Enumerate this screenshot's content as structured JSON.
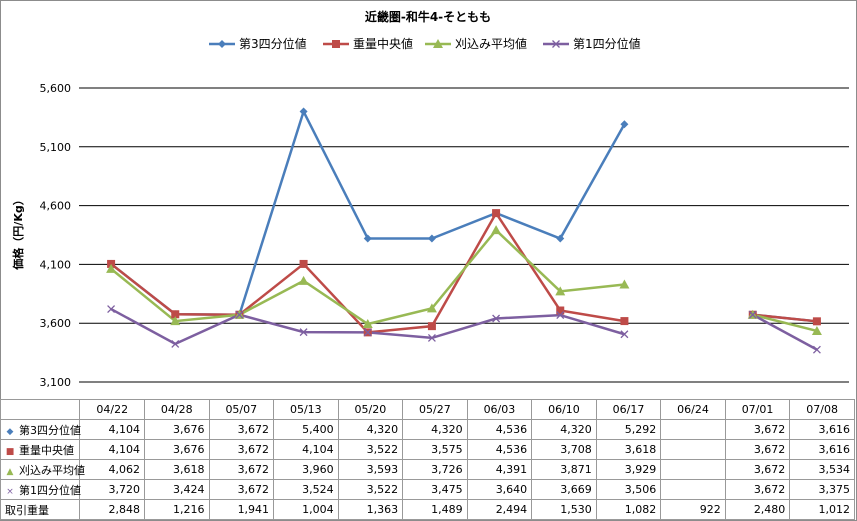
{
  "chart_data": {
    "type": "line",
    "title": "近畿圏-和牛4-そともも",
    "ylabel": "価格（円/Kg）",
    "categories": [
      "04/22",
      "04/28",
      "05/07",
      "05/13",
      "05/20",
      "05/27",
      "06/03",
      "06/10",
      "06/17",
      "06/24",
      "07/01",
      "07/08"
    ],
    "ylim": [
      3100,
      5600
    ],
    "yticks": [
      "3,100",
      "3,600",
      "4,100",
      "4,600",
      "5,100",
      "5,600"
    ],
    "grid": true,
    "legend_position": "top",
    "series": [
      {
        "name": "第3四分位値",
        "color": "#4a7ebb",
        "marker": "diamond",
        "values": [
          4104,
          3676,
          3672,
          5400,
          4320,
          4320,
          4536,
          4320,
          5292,
          null,
          3672,
          3616
        ],
        "labels": [
          "4,104",
          "3,676",
          "3,672",
          "5,400",
          "4,320",
          "4,320",
          "4,536",
          "4,320",
          "5,292",
          "",
          "3,672",
          "3,616"
        ]
      },
      {
        "name": "重量中央値",
        "color": "#be4b48",
        "marker": "square",
        "values": [
          4104,
          3676,
          3672,
          4104,
          3522,
          3575,
          4536,
          3708,
          3618,
          null,
          3672,
          3616
        ],
        "labels": [
          "4,104",
          "3,676",
          "3,672",
          "4,104",
          "3,522",
          "3,575",
          "4,536",
          "3,708",
          "3,618",
          "",
          "3,672",
          "3,616"
        ]
      },
      {
        "name": "刈込み平均値",
        "color": "#98b954",
        "marker": "triangle",
        "values": [
          4062,
          3618,
          3672,
          3960,
          3593,
          3726,
          4391,
          3871,
          3929,
          null,
          3672,
          3534
        ],
        "labels": [
          "4,062",
          "3,618",
          "3,672",
          "3,960",
          "3,593",
          "3,726",
          "4,391",
          "3,871",
          "3,929",
          "",
          "3,672",
          "3,534"
        ]
      },
      {
        "name": "第1四分位値",
        "color": "#7d5fa0",
        "marker": "x",
        "values": [
          3720,
          3424,
          3672,
          3524,
          3522,
          3475,
          3640,
          3669,
          3506,
          null,
          3672,
          3375
        ],
        "labels": [
          "3,720",
          "3,424",
          "3,672",
          "3,524",
          "3,522",
          "3,475",
          "3,640",
          "3,669",
          "3,506",
          "",
          "3,672",
          "3,375"
        ]
      }
    ],
    "table_extra_row": {
      "name": "取引重量",
      "labels": [
        "2,848",
        "1,216",
        "1,941",
        "1,004",
        "1,363",
        "1,489",
        "2,494",
        "1,530",
        "1,082",
        "922",
        "2,480",
        "1,012"
      ]
    }
  }
}
